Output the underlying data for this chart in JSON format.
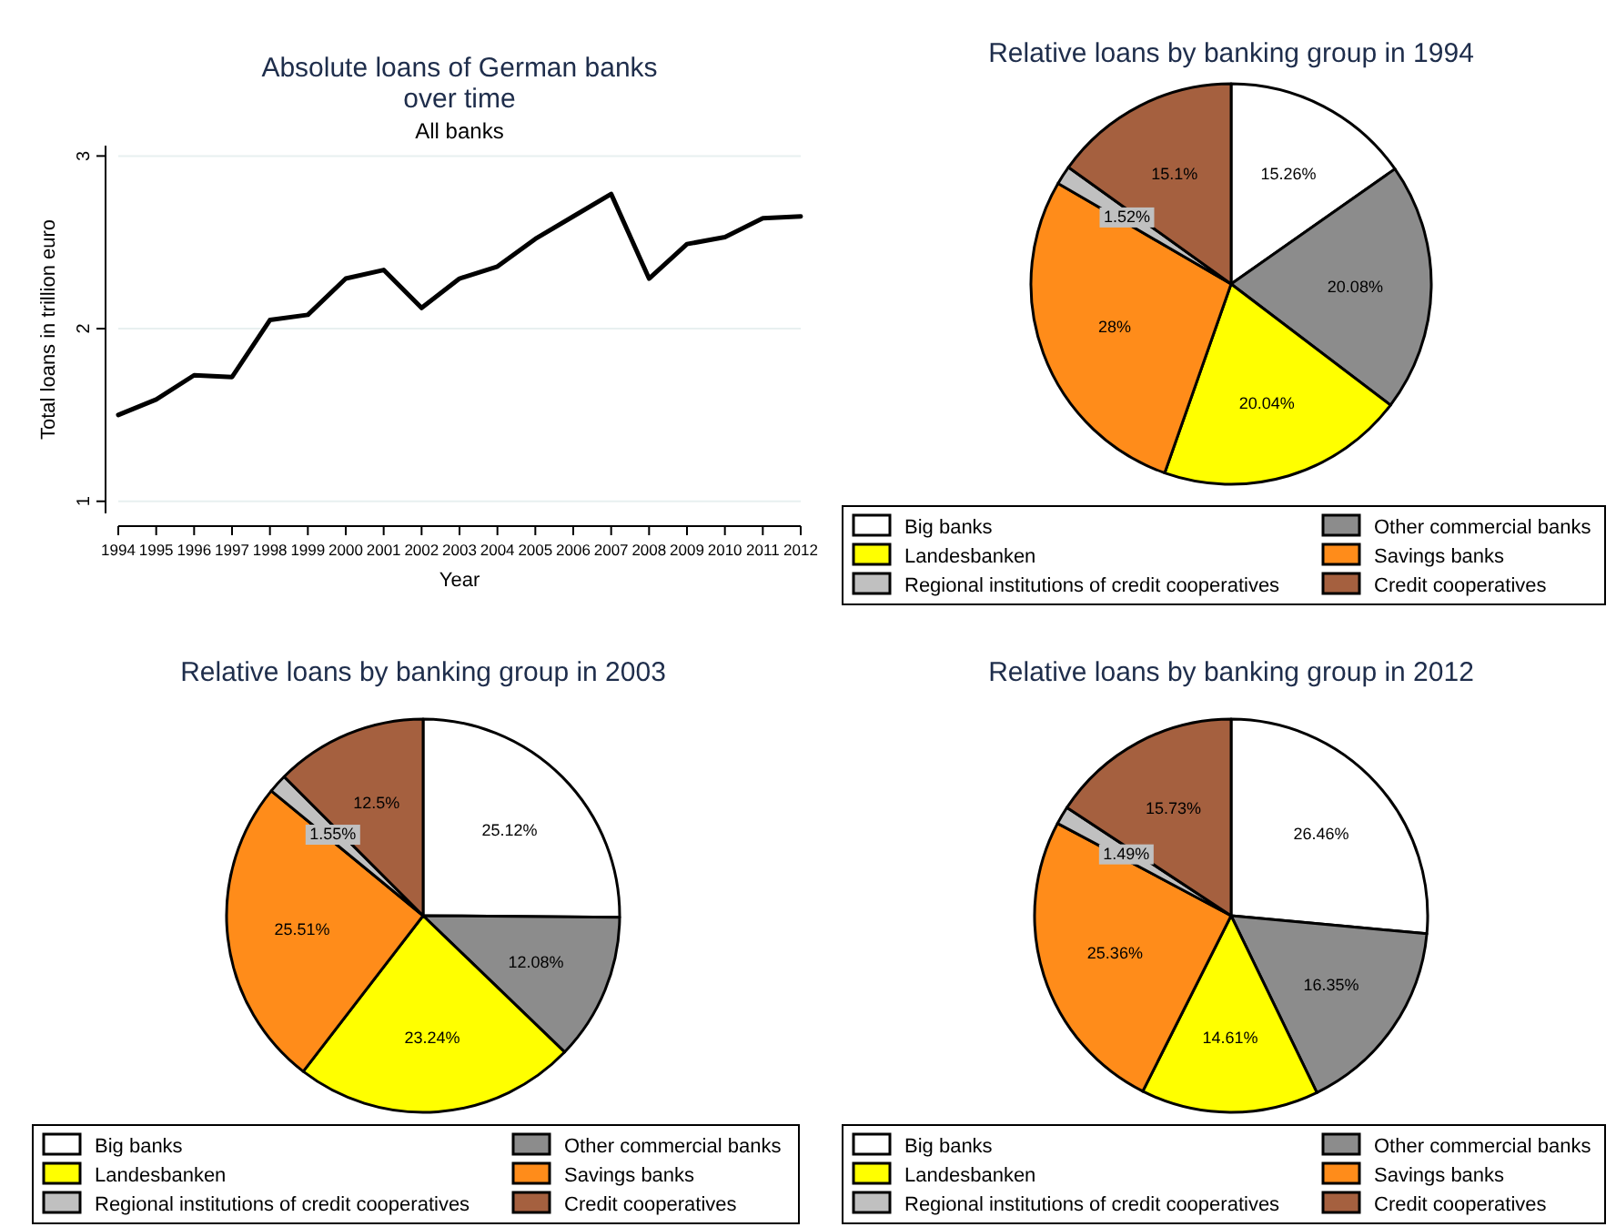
{
  "chart_data": [
    {
      "type": "line",
      "title": "Absolute loans of German banks over time",
      "subtitle": "All banks",
      "xlabel": "Year",
      "ylabel": "Total loans in trillion euro",
      "x": [
        1994,
        1995,
        1996,
        1997,
        1998,
        1999,
        2000,
        2001,
        2002,
        2003,
        2004,
        2005,
        2006,
        2007,
        2008,
        2009,
        2010,
        2011,
        2012
      ],
      "series": [
        {
          "color": "#000000",
          "values": [
            1.5,
            1.59,
            1.73,
            1.72,
            2.05,
            2.08,
            2.29,
            2.34,
            2.12,
            2.29,
            2.36,
            2.52,
            2.65,
            2.78,
            2.29,
            2.49,
            2.53,
            2.64,
            2.65
          ]
        }
      ],
      "xlim": [
        1994,
        2012
      ],
      "xticks": [
        1994,
        1995,
        1996,
        1997,
        1998,
        1999,
        2000,
        2001,
        2002,
        2003,
        2004,
        2005,
        2006,
        2007,
        2008,
        2009,
        2010,
        2011,
        2012
      ],
      "ylim": [
        0.93,
        3.06
      ],
      "yticks": [
        1,
        2,
        3
      ],
      "grid": "y",
      "marker": "none",
      "line_style": "solid"
    },
    {
      "type": "pie",
      "title": "Relative loans by banking group in 1994",
      "categories": [
        "Big banks",
        "Other commercial banks",
        "Landesbanken",
        "Savings banks",
        "Regional institutions of credit cooperatives",
        "Credit cooperatives"
      ],
      "values": [
        15.26,
        20.08,
        20.04,
        28,
        1.52,
        15.1
      ],
      "value_labels": [
        "15.26%",
        "20.08%",
        "20.04%",
        "28%",
        "1.52%",
        "15.1%"
      ],
      "colors": [
        "#ffffff",
        "#8c8c8c",
        "#ffff00",
        "#ff8c1a",
        "#c0c0c0",
        "#a5603f"
      ],
      "legend": "bottom"
    },
    {
      "type": "pie",
      "title": "Relative loans by banking group in 2003",
      "categories": [
        "Big banks",
        "Other commercial banks",
        "Landesbanken",
        "Savings banks",
        "Regional institutions of credit cooperatives",
        "Credit cooperatives"
      ],
      "values": [
        25.12,
        12.08,
        23.24,
        25.51,
        1.55,
        12.5
      ],
      "value_labels": [
        "25.12%",
        "12.08%",
        "23.24%",
        "25.51%",
        "1.55%",
        "12.5%"
      ],
      "colors": [
        "#ffffff",
        "#8c8c8c",
        "#ffff00",
        "#ff8c1a",
        "#c0c0c0",
        "#a5603f"
      ],
      "legend": "bottom"
    },
    {
      "type": "pie",
      "title": "Relative loans by banking group in 2012",
      "categories": [
        "Big banks",
        "Other commercial banks",
        "Landesbanken",
        "Savings banks",
        "Regional institutions of credit cooperatives",
        "Credit cooperatives"
      ],
      "values": [
        26.46,
        16.35,
        14.61,
        25.36,
        1.49,
        15.73
      ],
      "value_labels": [
        "26.46%",
        "16.35%",
        "14.61%",
        "25.36%",
        "1.49%",
        "15.73%"
      ],
      "colors": [
        "#ffffff",
        "#8c8c8c",
        "#ffff00",
        "#ff8c1a",
        "#c0c0c0",
        "#a5603f"
      ],
      "legend": "bottom"
    }
  ]
}
